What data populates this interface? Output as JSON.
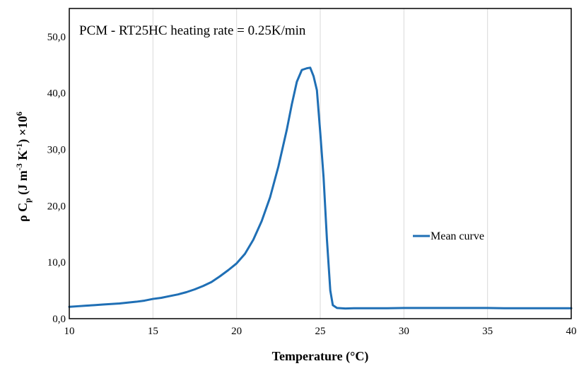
{
  "chart_data": {
    "type": "line",
    "annotation": "PCM - RT25HC  heating rate = 0.25K/min",
    "xlabel": "Temperature (°C)",
    "ylabel": {
      "rho": "ρ C",
      "p_sub": "p",
      "units_a": " (J m",
      "exp_a": "-3",
      "units_b": " K",
      "exp_b": "-1",
      "units_c": ") ×10",
      "exp_c": "6"
    },
    "xlim": [
      10,
      40
    ],
    "ylim": [
      0,
      55
    ],
    "x_ticks": [
      10,
      15,
      20,
      25,
      30,
      35,
      40
    ],
    "x_tick_labels": [
      "10",
      "15",
      "20",
      "25",
      "30",
      "35",
      "40"
    ],
    "y_ticks": [
      0,
      10,
      20,
      30,
      40,
      50
    ],
    "y_tick_labels": [
      "0,0",
      "10,0",
      "20,0",
      "30,0",
      "40,0",
      "50,0"
    ],
    "grid": "vertical",
    "legend_position": "right-center",
    "series": [
      {
        "name": "Mean curve",
        "color": "#1f6fb5",
        "x": [
          10,
          10.5,
          11,
          11.5,
          12,
          12.5,
          13,
          13.5,
          14,
          14.5,
          15,
          15.5,
          16,
          16.5,
          17,
          17.5,
          18,
          18.5,
          19,
          19.5,
          20,
          20.5,
          21,
          21.5,
          22,
          22.5,
          23,
          23.3,
          23.6,
          23.9,
          24.2,
          24.4,
          24.6,
          24.8,
          25.0,
          25.2,
          25.4,
          25.6,
          25.75,
          26.0,
          26.5,
          27,
          28,
          29,
          30,
          31,
          32,
          33,
          34,
          35,
          36,
          38,
          40
        ],
        "values": [
          2.1,
          2.2,
          2.3,
          2.4,
          2.5,
          2.6,
          2.7,
          2.85,
          3.0,
          3.2,
          3.5,
          3.7,
          4.0,
          4.3,
          4.7,
          5.2,
          5.8,
          6.5,
          7.5,
          8.6,
          9.8,
          11.5,
          14.0,
          17.3,
          21.5,
          27.0,
          33.5,
          38.0,
          42.0,
          44.1,
          44.4,
          44.5,
          43.0,
          40.5,
          33.0,
          25.0,
          14.0,
          5.0,
          2.4,
          1.9,
          1.8,
          1.85,
          1.85,
          1.85,
          1.9,
          1.9,
          1.9,
          1.9,
          1.9,
          1.9,
          1.85,
          1.85,
          1.85
        ]
      }
    ]
  }
}
